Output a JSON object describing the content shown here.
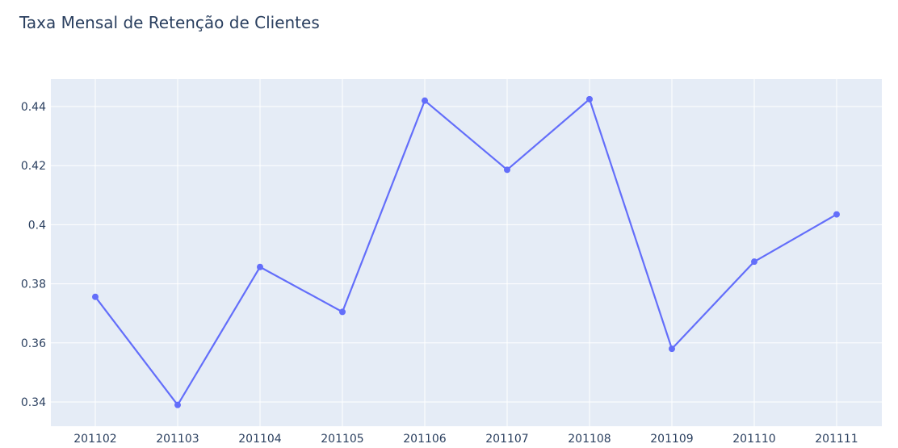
{
  "chart_data": {
    "type": "line",
    "title": "Taxa Mensal de Retenção de Clientes",
    "xlabel": "",
    "ylabel": "",
    "categories": [
      "201102",
      "201103",
      "201104",
      "201105",
      "201106",
      "201107",
      "201108",
      "201109",
      "201110",
      "201111"
    ],
    "series": [
      {
        "values": [
          0.3756,
          0.339,
          0.3857,
          0.3705,
          0.442,
          0.4186,
          0.4425,
          0.358,
          0.3875,
          0.4035
        ]
      }
    ],
    "ylim": [
      0.332,
      0.45
    ],
    "yticks": [
      0.34,
      0.36,
      0.38,
      0.4,
      0.42,
      0.44
    ],
    "ytick_labels": [
      "0.34",
      "0.36",
      "0.38",
      "0.4",
      "0.42",
      "0.44"
    ],
    "grid": true,
    "colors": {
      "line": "#636efa",
      "plot_bg": "#e5ecf6",
      "grid": "#ffffff",
      "text": "#2a3f5f"
    }
  }
}
